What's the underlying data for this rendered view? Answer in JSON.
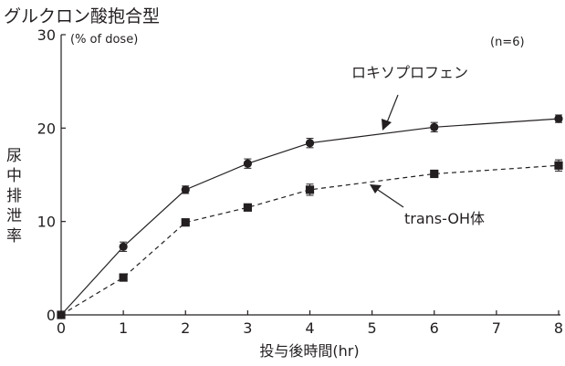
{
  "chart_data": {
    "type": "line",
    "title": "グルクロン酸抱合型",
    "unit_label": "(% of dose)",
    "ylabel": "尿中排泄率",
    "xlabel": "投与後時間(hr)",
    "annotation": "(n=6)",
    "x": [
      0,
      1,
      2,
      3,
      4,
      6,
      8
    ],
    "xticks": [
      0,
      1,
      2,
      3,
      4,
      5,
      6,
      7,
      8
    ],
    "yticks": [
      0,
      10,
      20,
      30
    ],
    "xlim": [
      0,
      8
    ],
    "ylim": [
      0,
      30
    ],
    "grid": false,
    "series": [
      {
        "name": "ロキソプロフェン",
        "marker": "circle",
        "line": "solid",
        "values": [
          0,
          7.3,
          13.4,
          16.2,
          18.4,
          20.1,
          21.0
        ],
        "errors": [
          0,
          0.5,
          0.4,
          0.5,
          0.5,
          0.5,
          0.4
        ]
      },
      {
        "name": "trans-OH体",
        "marker": "square",
        "line": "dashed",
        "values": [
          0,
          4.0,
          9.9,
          11.5,
          13.4,
          15.1,
          16.0
        ],
        "errors": [
          0,
          0.3,
          0.3,
          0.3,
          0.6,
          0.3,
          0.6
        ]
      }
    ]
  }
}
